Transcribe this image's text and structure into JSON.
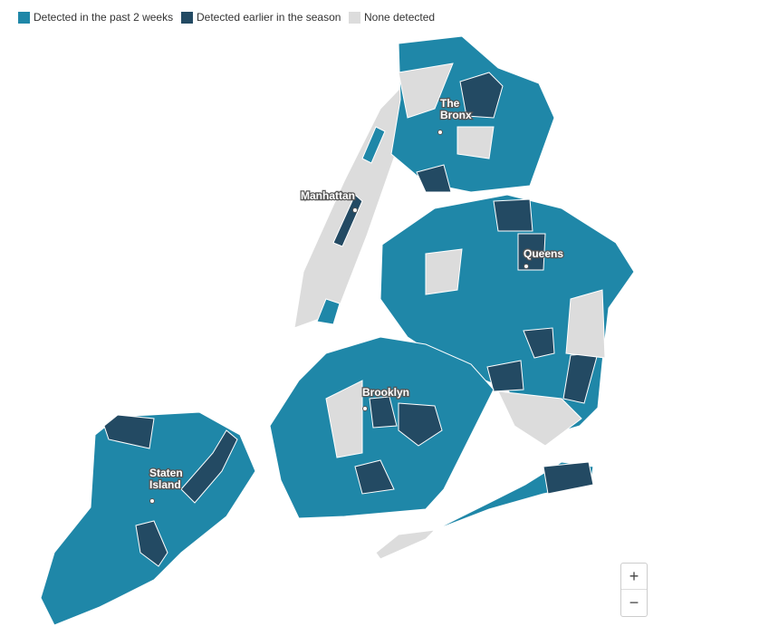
{
  "legend": [
    {
      "label": "Detected in the past 2 weeks",
      "color": "#1f87a8"
    },
    {
      "label": "Detected earlier in the season",
      "color": "#234a63"
    },
    {
      "label": "None detected",
      "color": "#dcdcdc"
    }
  ],
  "places": [
    {
      "lines": [
        "The",
        "Bronx"
      ]
    },
    {
      "lines": [
        "Manhattan"
      ]
    },
    {
      "lines": [
        "Queens"
      ]
    },
    {
      "lines": [
        "Brooklyn"
      ]
    },
    {
      "lines": [
        "Staten",
        "Island"
      ]
    }
  ],
  "zoom": {
    "in": "+",
    "out": "−"
  }
}
